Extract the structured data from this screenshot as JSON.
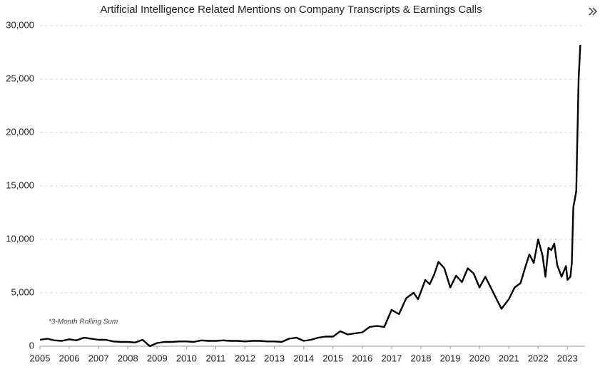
{
  "chart_data": {
    "type": "line",
    "title": "Artificial Intelligence Related Mentions on Company Transcripts & Earnings Calls",
    "annotation": "*3-Month Rolling Sum",
    "color": "#000000",
    "grid": true,
    "x": [
      2005.0,
      2005.25,
      2005.5,
      2005.75,
      2006.0,
      2006.25,
      2006.5,
      2006.75,
      2007.0,
      2007.25,
      2007.5,
      2007.75,
      2008.0,
      2008.25,
      2008.5,
      2008.75,
      2009.0,
      2009.25,
      2009.5,
      2009.75,
      2010.0,
      2010.25,
      2010.5,
      2010.75,
      2011.0,
      2011.25,
      2011.5,
      2011.75,
      2012.0,
      2012.25,
      2012.5,
      2012.75,
      2013.0,
      2013.25,
      2013.5,
      2013.75,
      2014.0,
      2014.25,
      2014.5,
      2014.75,
      2015.0,
      2015.25,
      2015.5,
      2015.75,
      2016.0,
      2016.25,
      2016.5,
      2016.75,
      2017.0,
      2017.25,
      2017.5,
      2017.75,
      2017.9,
      2018.0,
      2018.15,
      2018.3,
      2018.45,
      2018.6,
      2018.8,
      2019.0,
      2019.2,
      2019.4,
      2019.6,
      2019.8,
      2020.0,
      2020.2,
      2020.4,
      2020.6,
      2020.75,
      2021.0,
      2021.2,
      2021.4,
      2021.55,
      2021.7,
      2021.85,
      2022.0,
      2022.15,
      2022.25,
      2022.35,
      2022.45,
      2022.55,
      2022.65,
      2022.8,
      2022.95,
      2023.0,
      2023.1,
      2023.15,
      2023.2,
      2023.3,
      2023.38,
      2023.44
    ],
    "values": [
      600,
      700,
      550,
      500,
      650,
      550,
      800,
      700,
      600,
      600,
      450,
      400,
      400,
      350,
      600,
      0,
      300,
      400,
      400,
      450,
      450,
      400,
      550,
      500,
      500,
      550,
      500,
      500,
      450,
      500,
      500,
      450,
      450,
      400,
      700,
      800,
      500,
      600,
      800,
      900,
      900,
      1400,
      1100,
      1200,
      1300,
      1800,
      1900,
      1800,
      3400,
      3000,
      4500,
      5000,
      4400,
      5100,
      6200,
      5800,
      6700,
      7900,
      7300,
      5500,
      6600,
      6000,
      7300,
      6800,
      5500,
      6500,
      5400,
      4300,
      3500,
      4400,
      5500,
      5900,
      7300,
      8600,
      7800,
      10000,
      8500,
      6500,
      9200,
      9000,
      9600,
      7600,
      6500,
      7500,
      6200,
      6500,
      7800,
      13000,
      14500,
      25000,
      28200
    ],
    "xlim": [
      2005,
      2023.6
    ],
    "xticks": [
      2005,
      2006,
      2007,
      2008,
      2009,
      2010,
      2011,
      2012,
      2013,
      2014,
      2015,
      2016,
      2017,
      2018,
      2019,
      2020,
      2021,
      2022,
      2023
    ],
    "ylim": [
      0,
      30000
    ],
    "yticks": [
      0,
      {
        "value": 5000,
        "label": "5,000"
      },
      {
        "value": 10000,
        "label": "10,000"
      },
      {
        "value": 15000,
        "label": "15,000"
      },
      {
        "value": 20000,
        "label": "20,000"
      },
      {
        "value": 25000,
        "label": "25,000"
      },
      {
        "value": 30000,
        "label": "30,000"
      }
    ]
  }
}
